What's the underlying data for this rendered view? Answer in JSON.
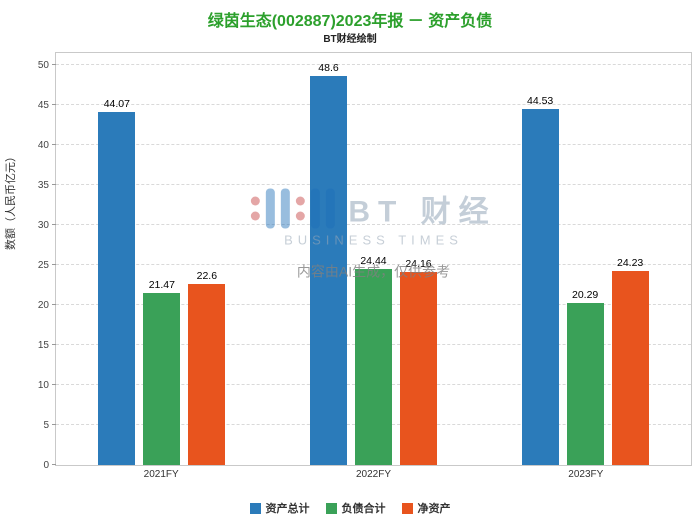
{
  "title": "绿茵生态(002887)2023年报 － 资产负债",
  "subtitle": "BT财经绘制",
  "watermark": {
    "brand": "BT 财经",
    "brand_sub": "BUSINESS TIMES",
    "disclaimer": "内容由AI生成，仅供参考"
  },
  "chart_data": {
    "type": "bar",
    "title": "绿茵生态(002887)2023年报 － 资产负债",
    "categories": [
      "2021FY",
      "2022FY",
      "2023FY"
    ],
    "series": [
      {
        "name": "资产总计",
        "color": "#2b7bba",
        "values": [
          44.07,
          48.6,
          44.53
        ]
      },
      {
        "name": "负债合计",
        "color": "#3aa158",
        "values": [
          21.47,
          24.44,
          20.29
        ]
      },
      {
        "name": "净资产",
        "color": "#e8541e",
        "values": [
          22.6,
          24.16,
          24.23
        ]
      }
    ],
    "ylabel": "数额（人民币亿元）",
    "ylim": [
      0,
      51.5
    ],
    "yticks": [
      0,
      5,
      10,
      15,
      20,
      25,
      30,
      35,
      40,
      45,
      50
    ],
    "grid": true,
    "legend_position": "bottom"
  }
}
